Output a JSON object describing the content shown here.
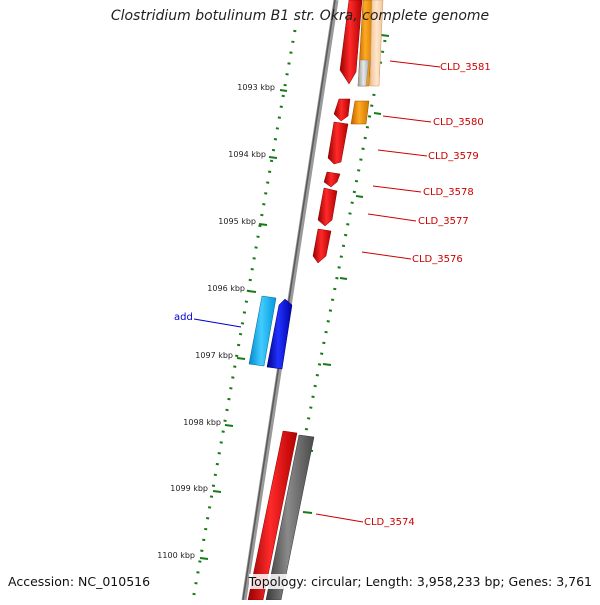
{
  "title": "Clostridium botulinum B1 str. Okra, complete genome",
  "footer": {
    "accession": "Accession: NC_010516",
    "summary": "Topology: circular; Length: 3,958,233 bp; Genes: 3,761"
  },
  "scale_labels": [
    "1093 kbp",
    "1094 kbp",
    "1095 kbp",
    "1096 kbp",
    "1097 kbp",
    "1098 kbp",
    "1099 kbp",
    "1100 kbp"
  ],
  "gene_labels": {
    "CLD_3581": "CLD_3581",
    "CLD_3580": "CLD_3580",
    "CLD_3579": "CLD_3579",
    "CLD_3578": "CLD_3578",
    "CLD_3577": "CLD_3577",
    "CLD_3576": "CLD_3576",
    "add": "add",
    "CLD_3574": "CLD_3574"
  },
  "colors": {
    "cds_red": "#ee0000",
    "cds_orange": "#ff9900",
    "cds_gray": "#707070",
    "cds_blue": "#0000dd",
    "cds_cyan": "#00aaee",
    "tick_green": "#1a7a1a",
    "label_red": "#cc0000",
    "label_blue": "#0000cc"
  }
}
